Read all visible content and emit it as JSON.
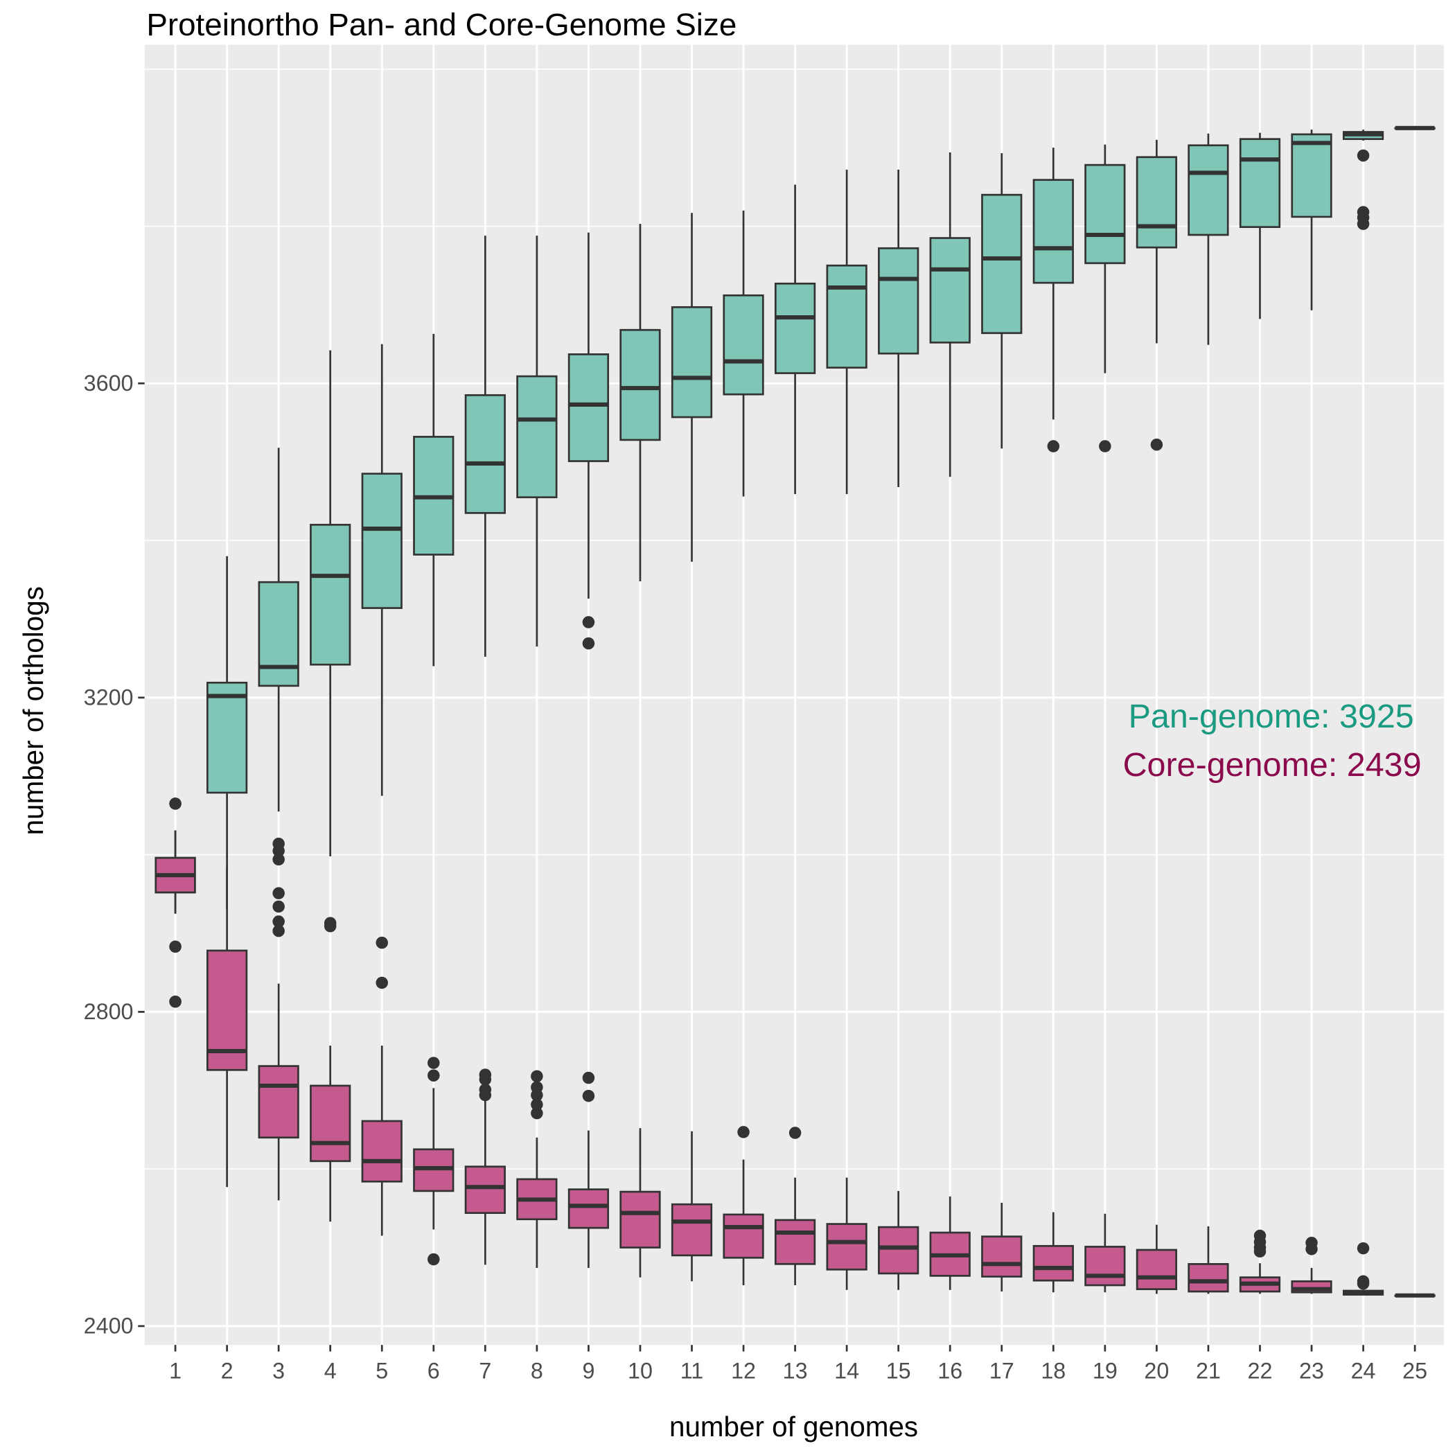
{
  "chart_data": {
    "type": "boxplot",
    "title": "Proteinortho Pan- and Core-Genome Size",
    "xlabel": "number of genomes",
    "ylabel": "number of orthologs",
    "ylim": [
      2376,
      4031
    ],
    "yticks": [
      2400,
      2800,
      3200,
      3600
    ],
    "grid": true,
    "categories": [
      "1",
      "2",
      "3",
      "4",
      "5",
      "6",
      "7",
      "8",
      "9",
      "10",
      "11",
      "12",
      "13",
      "14",
      "15",
      "16",
      "17",
      "18",
      "19",
      "20",
      "21",
      "22",
      "23",
      "24",
      "25"
    ],
    "box_format": [
      "lower_whisker",
      "q1",
      "median",
      "q3",
      "upper_whisker",
      "outliers"
    ],
    "series": [
      {
        "name": "Pan-genome",
        "color": "#80c6b6",
        "boxes": [
          [
            2925,
            2952,
            2974,
            2996,
            3031,
            [
              3065,
              2883,
              2813
            ]
          ],
          [
            2930,
            3079,
            3202,
            3219,
            3380,
            []
          ],
          [
            3055,
            3215,
            3239,
            3347,
            3518,
            []
          ],
          [
            2998,
            3242,
            3355,
            3420,
            3642,
            []
          ],
          [
            3075,
            3314,
            3415,
            3485,
            3650,
            []
          ],
          [
            3240,
            3382,
            3455,
            3532,
            3663,
            []
          ],
          [
            3252,
            3435,
            3498,
            3585,
            3788,
            []
          ],
          [
            3265,
            3455,
            3554,
            3609,
            3788,
            []
          ],
          [
            3326,
            3501,
            3573,
            3637,
            3792,
            [
              3296,
              3269
            ]
          ],
          [
            3348,
            3528,
            3594,
            3668,
            3803,
            []
          ],
          [
            3373,
            3557,
            3607,
            3697,
            3817,
            []
          ],
          [
            3456,
            3586,
            3628,
            3712,
            3820,
            []
          ],
          [
            3459,
            3613,
            3684,
            3727,
            3853,
            []
          ],
          [
            3459,
            3620,
            3722,
            3750,
            3872,
            []
          ],
          [
            3468,
            3638,
            3733,
            3772,
            3872,
            []
          ],
          [
            3481,
            3652,
            3745,
            3785,
            3894,
            []
          ],
          [
            3517,
            3664,
            3759,
            3840,
            3893,
            []
          ],
          [
            3554,
            3728,
            3772,
            3859,
            3900,
            [
              3520
            ]
          ],
          [
            3613,
            3753,
            3789,
            3878,
            3904,
            [
              3520
            ]
          ],
          [
            3651,
            3773,
            3800,
            3888,
            3910,
            [
              3522
            ]
          ],
          [
            3649,
            3789,
            3868,
            3903,
            3918,
            []
          ],
          [
            3682,
            3799,
            3885,
            3911,
            3919,
            []
          ],
          [
            3693,
            3812,
            3906,
            3917,
            3923,
            []
          ],
          [
            3909,
            3911,
            3917,
            3920,
            3923,
            [
              3890,
              3818,
              3811,
              3803
            ]
          ],
          [
            3925,
            3925,
            3925,
            3925,
            3925,
            []
          ]
        ]
      },
      {
        "name": "Core-genome",
        "color": "#c45a8e",
        "boxes": [
          [
            2925,
            2952,
            2974,
            2996,
            3031,
            [
              3065,
              2883,
              2813
            ]
          ],
          [
            2577,
            2726,
            2750,
            2878,
            2984,
            []
          ],
          [
            2560,
            2640,
            2706,
            2731,
            2836,
            [
              3014,
              3005,
              2994,
              2951,
              2934,
              2915,
              2903
            ]
          ],
          [
            2533,
            2610,
            2633,
            2706,
            2757,
            [
              2913,
              2909
            ]
          ],
          [
            2515,
            2584,
            2610,
            2661,
            2757,
            [
              2888,
              2837
            ]
          ],
          [
            2523,
            2572,
            2601,
            2625,
            2703,
            [
              2735,
              2719,
              2485
            ]
          ],
          [
            2478,
            2544,
            2577,
            2603,
            2687,
            [
              2720,
              2714,
              2701,
              2694
            ]
          ],
          [
            2474,
            2536,
            2561,
            2587,
            2640,
            [
              2718,
              2704,
              2694,
              2682,
              2671
            ]
          ],
          [
            2474,
            2525,
            2553,
            2574,
            2649,
            [
              2716,
              2693
            ]
          ],
          [
            2462,
            2500,
            2544,
            2571,
            2652,
            []
          ],
          [
            2457,
            2490,
            2533,
            2555,
            2648,
            []
          ],
          [
            2452,
            2487,
            2526,
            2542,
            2612,
            [
              2647
            ]
          ],
          [
            2452,
            2479,
            2519,
            2535,
            2589,
            [
              2646
            ]
          ],
          [
            2446,
            2472,
            2507,
            2530,
            2589,
            []
          ],
          [
            2446,
            2467,
            2500,
            2526,
            2572,
            []
          ],
          [
            2446,
            2464,
            2490,
            2519,
            2565,
            []
          ],
          [
            2444,
            2463,
            2479,
            2514,
            2557,
            []
          ],
          [
            2443,
            2458,
            2474,
            2502,
            2545,
            []
          ],
          [
            2443,
            2452,
            2464,
            2501,
            2543,
            []
          ],
          [
            2441,
            2447,
            2462,
            2497,
            2529,
            []
          ],
          [
            2441,
            2444,
            2457,
            2479,
            2527,
            []
          ],
          [
            2441,
            2444,
            2454,
            2462,
            2480,
            [
              2515,
              2507,
              2500,
              2495
            ]
          ],
          [
            2441,
            2443,
            2447,
            2457,
            2474,
            [
              2506,
              2498
            ]
          ],
          [
            2440,
            2440,
            2443,
            2445,
            2445,
            [
              2499,
              2457,
              2454
            ]
          ],
          [
            2439,
            2439,
            2439,
            2439,
            2439,
            []
          ]
        ]
      }
    ],
    "annotations": {
      "pan": {
        "text": "Pan-genome: 3925",
        "color": "#1a9a80"
      },
      "core": {
        "text": "Core-genome: 2439",
        "color": "#8b0a4e"
      }
    }
  }
}
